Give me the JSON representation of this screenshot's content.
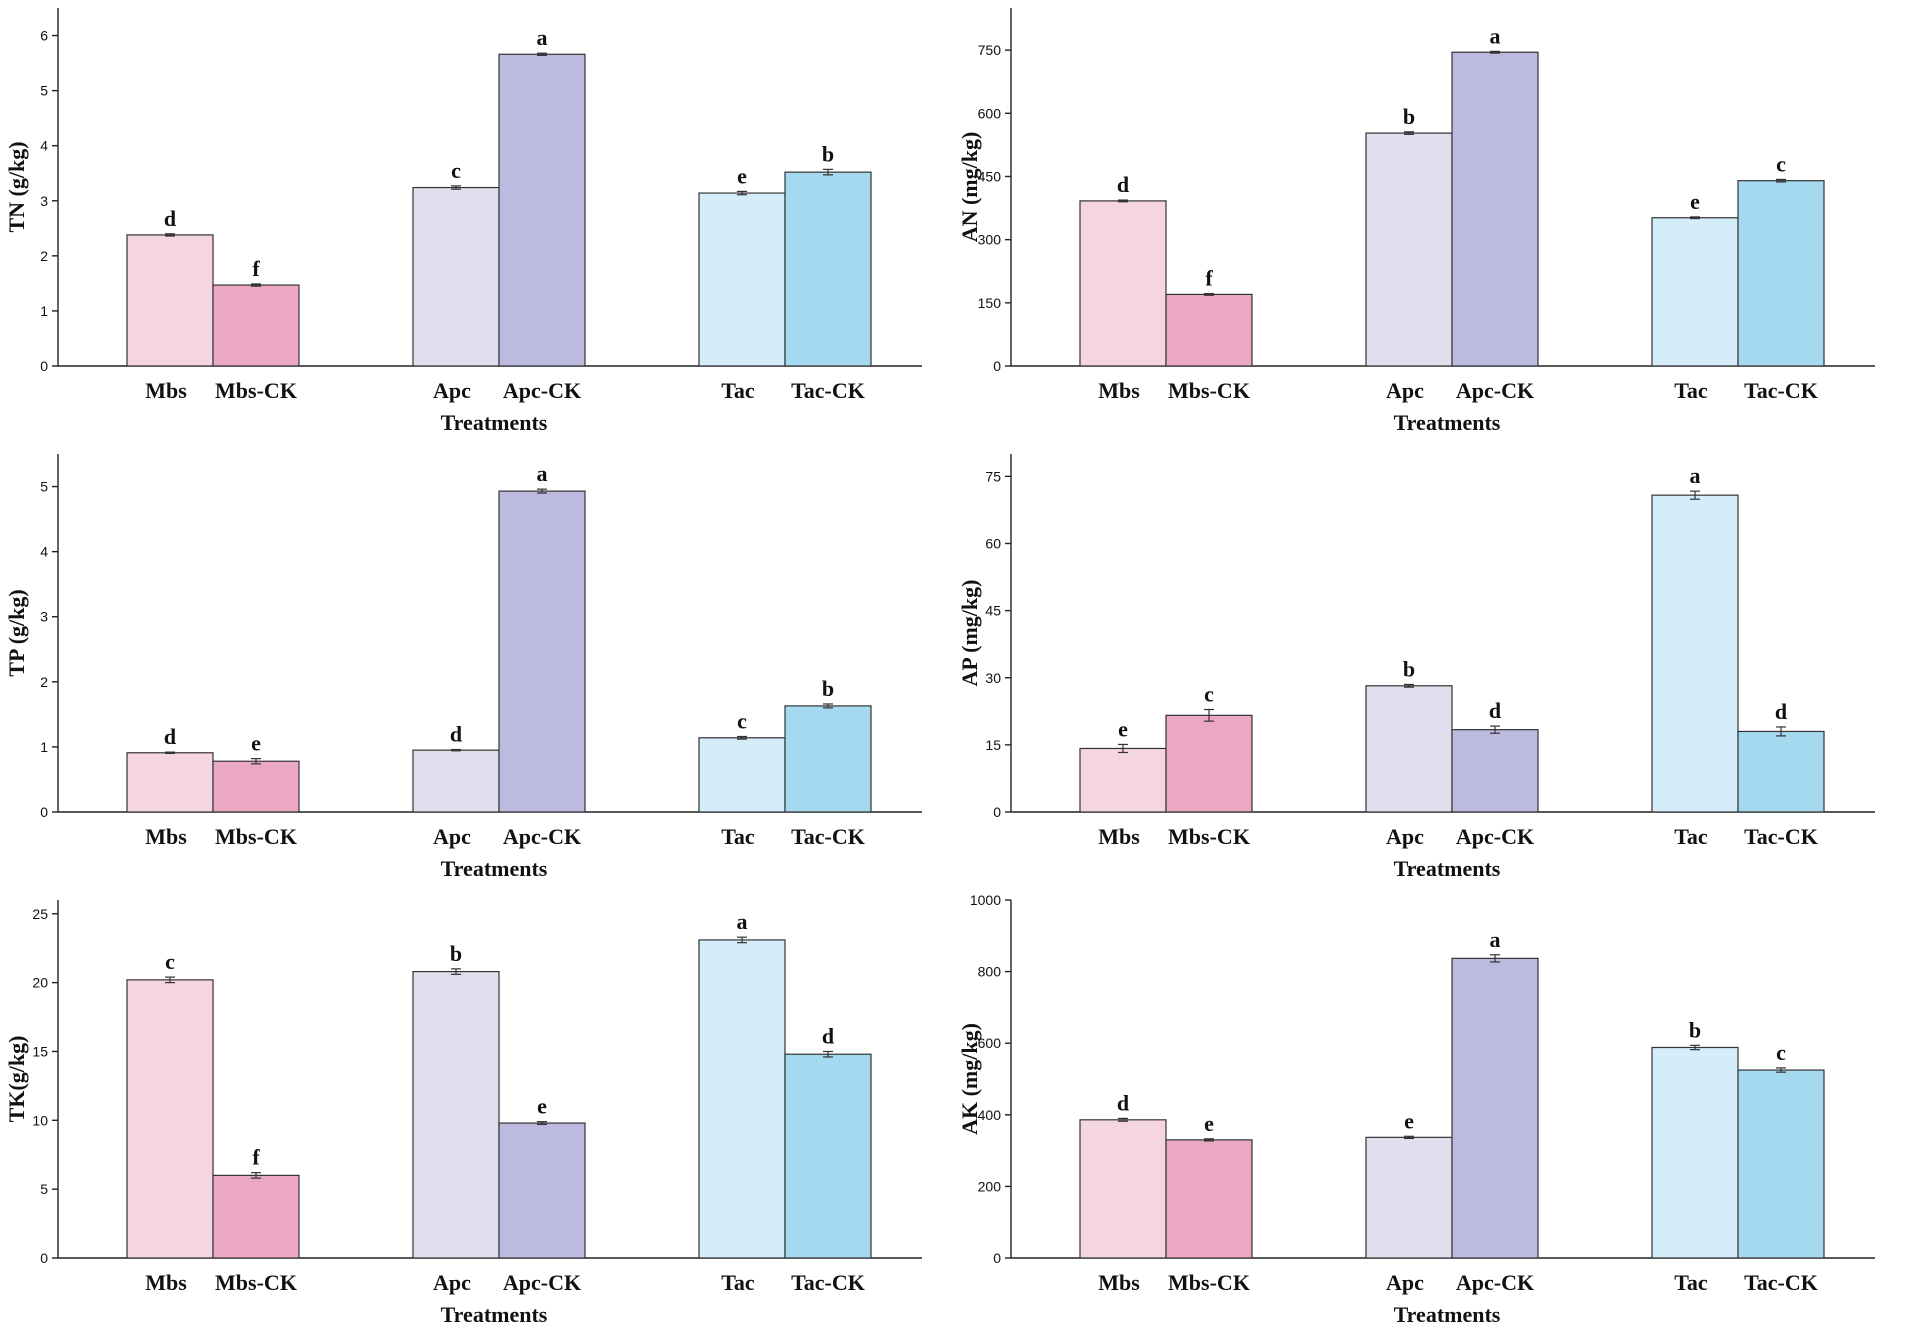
{
  "colors": {
    "Mbs": "#f5d5e2",
    "Mbs-CK": "#eaa8c4",
    "Apc": "#e1dfee",
    "Apc-CK": "#bcbbdf",
    "Tac": "#d5ecf9",
    "Tac-CK": "#a5d9f0"
  },
  "chart_data": [
    {
      "id": "tn",
      "type": "bar",
      "title": "",
      "xlabel": "Treatments",
      "ylabel": "TN (g/kg)",
      "categories": [
        "Mbs",
        "Mbs-CK",
        "Apc",
        "Apc-CK",
        "Tac",
        "Tac-CK"
      ],
      "values": [
        2.38,
        1.47,
        3.24,
        5.66,
        3.14,
        3.52
      ],
      "errors": [
        0.02,
        0.02,
        0.03,
        0.02,
        0.03,
        0.05
      ],
      "letters": [
        "d",
        "f",
        "c",
        "a",
        "e",
        "b"
      ],
      "ylim": [
        0,
        6.5
      ],
      "yticks": [
        0,
        1,
        2,
        3,
        4,
        5,
        6
      ]
    },
    {
      "id": "an",
      "type": "bar",
      "title": "",
      "xlabel": "Treatments",
      "ylabel": "AN (mg/kg)",
      "categories": [
        "Mbs",
        "Mbs-CK",
        "Apc",
        "Apc-CK",
        "Tac",
        "Tac-CK"
      ],
      "values": [
        392,
        170,
        553,
        745,
        352,
        440
      ],
      "errors": [
        2,
        2,
        3,
        2,
        2,
        3
      ],
      "letters": [
        "d",
        "f",
        "b",
        "a",
        "e",
        "c"
      ],
      "ylim": [
        0,
        850
      ],
      "yticks": [
        0,
        150,
        300,
        450,
        600,
        750
      ]
    },
    {
      "id": "tp",
      "type": "bar",
      "title": "",
      "xlabel": "Treatments",
      "ylabel": "TP (g/kg)",
      "categories": [
        "Mbs",
        "Mbs-CK",
        "Apc",
        "Apc-CK",
        "Tac",
        "Tac-CK"
      ],
      "values": [
        0.91,
        0.78,
        0.95,
        4.93,
        1.14,
        1.63
      ],
      "errors": [
        0.01,
        0.04,
        0.01,
        0.03,
        0.02,
        0.03
      ],
      "letters": [
        "d",
        "e",
        "d",
        "a",
        "c",
        "b"
      ],
      "ylim": [
        0,
        5.5
      ],
      "yticks": [
        0,
        1,
        2,
        3,
        4,
        5
      ]
    },
    {
      "id": "ap",
      "type": "bar",
      "title": "",
      "xlabel": "Treatments",
      "ylabel": "AP (mg/kg)",
      "categories": [
        "Mbs",
        "Mbs-CK",
        "Apc",
        "Apc-CK",
        "Tac",
        "Tac-CK"
      ],
      "values": [
        14.2,
        21.6,
        28.2,
        18.4,
        70.8,
        18.0
      ],
      "errors": [
        0.9,
        1.3,
        0.3,
        0.8,
        0.9,
        1.0
      ],
      "letters": [
        "e",
        "c",
        "b",
        "d",
        "a",
        "d"
      ],
      "ylim": [
        0,
        80
      ],
      "yticks": [
        0,
        15,
        30,
        45,
        60,
        75
      ]
    },
    {
      "id": "tk",
      "type": "bar",
      "title": "",
      "xlabel": "Treatments",
      "ylabel": "TK(g/kg)",
      "categories": [
        "Mbs",
        "Mbs-CK",
        "Apc",
        "Apc-CK",
        "Tac",
        "Tac-CK"
      ],
      "values": [
        20.2,
        6.0,
        20.8,
        9.8,
        23.1,
        14.8
      ],
      "errors": [
        0.2,
        0.2,
        0.2,
        0.1,
        0.2,
        0.2
      ],
      "letters": [
        "c",
        "f",
        "b",
        "e",
        "a",
        "d"
      ],
      "ylim": [
        0,
        26
      ],
      "yticks": [
        0,
        5,
        10,
        15,
        20,
        25
      ]
    },
    {
      "id": "ak",
      "type": "bar",
      "title": "",
      "xlabel": "Treatments",
      "ylabel": "AK (mg/kg)",
      "categories": [
        "Mbs",
        "Mbs-CK",
        "Apc",
        "Apc-CK",
        "Tac",
        "Tac-CK"
      ],
      "values": [
        386,
        330,
        337,
        837,
        588,
        525
      ],
      "errors": [
        4,
        3,
        3,
        10,
        6,
        6
      ],
      "letters": [
        "d",
        "e",
        "e",
        "a",
        "b",
        "c"
      ],
      "ylim": [
        0,
        1000
      ],
      "yticks": [
        0,
        200,
        400,
        600,
        800,
        1000
      ]
    }
  ]
}
